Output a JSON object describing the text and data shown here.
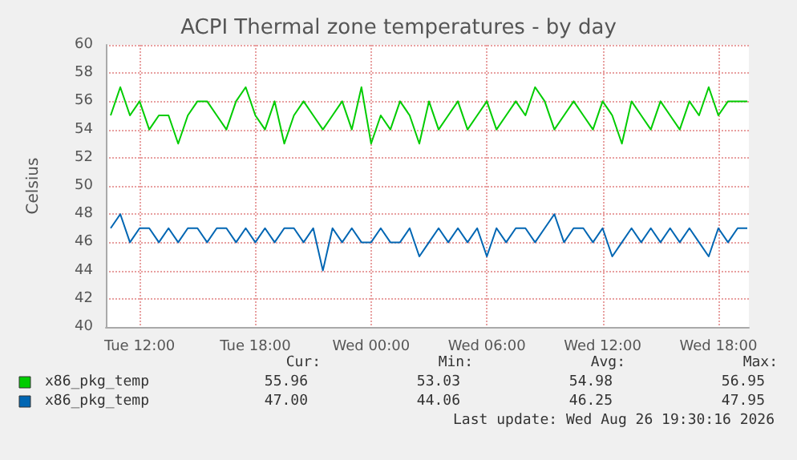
{
  "chart_data": {
    "type": "line",
    "title": "ACPI Thermal zone temperatures - by day",
    "ylabel": "Celsius",
    "x": [
      "2026-08-25T10:30",
      "2026-08-25T11:00",
      "2026-08-25T11:30",
      "2026-08-25T12:00",
      "2026-08-25T12:30",
      "2026-08-25T13:00",
      "2026-08-25T13:30",
      "2026-08-25T14:00",
      "2026-08-25T14:30",
      "2026-08-25T15:00",
      "2026-08-25T15:30",
      "2026-08-25T16:00",
      "2026-08-25T16:30",
      "2026-08-25T17:00",
      "2026-08-25T17:30",
      "2026-08-25T18:00",
      "2026-08-25T18:30",
      "2026-08-25T19:00",
      "2026-08-25T19:30",
      "2026-08-25T20:00",
      "2026-08-25T20:30",
      "2026-08-25T21:00",
      "2026-08-25T21:30",
      "2026-08-25T22:00",
      "2026-08-25T22:30",
      "2026-08-25T23:00",
      "2026-08-25T23:30",
      "2026-08-26T00:00",
      "2026-08-26T00:30",
      "2026-08-26T01:00",
      "2026-08-26T01:30",
      "2026-08-26T02:00",
      "2026-08-26T02:30",
      "2026-08-26T03:00",
      "2026-08-26T03:30",
      "2026-08-26T04:00",
      "2026-08-26T04:30",
      "2026-08-26T05:00",
      "2026-08-26T05:30",
      "2026-08-26T06:00",
      "2026-08-26T06:30",
      "2026-08-26T07:00",
      "2026-08-26T07:30",
      "2026-08-26T08:00",
      "2026-08-26T08:30",
      "2026-08-26T09:00",
      "2026-08-26T09:30",
      "2026-08-26T10:00",
      "2026-08-26T10:30",
      "2026-08-26T11:00",
      "2026-08-26T11:30",
      "2026-08-26T12:00",
      "2026-08-26T12:30",
      "2026-08-26T13:00",
      "2026-08-26T13:30",
      "2026-08-26T14:00",
      "2026-08-26T14:30",
      "2026-08-26T15:00",
      "2026-08-26T15:30",
      "2026-08-26T16:00",
      "2026-08-26T16:30",
      "2026-08-26T17:00",
      "2026-08-26T17:30",
      "2026-08-26T18:00",
      "2026-08-26T18:30",
      "2026-08-26T19:00",
      "2026-08-26T19:30"
    ],
    "series": [
      {
        "name": "x86_pkg_temp",
        "color": "#00cc00",
        "values": [
          55,
          57,
          55,
          56,
          54,
          55,
          55,
          53,
          55,
          56,
          56,
          55,
          54,
          56,
          57,
          55,
          54,
          56,
          53,
          55,
          56,
          55,
          54,
          55,
          56,
          54,
          57,
          53,
          55,
          54,
          56,
          55,
          53,
          56,
          54,
          55,
          56,
          54,
          55,
          56,
          54,
          55,
          56,
          55,
          57,
          56,
          54,
          55,
          56,
          55,
          54,
          56,
          55,
          53,
          56,
          55,
          54,
          56,
          55,
          54,
          56,
          55,
          57,
          55,
          56,
          56,
          56
        ]
      },
      {
        "name": "x86_pkg_temp",
        "color": "#0066b3",
        "values": [
          47,
          48,
          46,
          47,
          47,
          46,
          47,
          46,
          47,
          47,
          46,
          47,
          47,
          46,
          47,
          46,
          47,
          46,
          47,
          47,
          46,
          47,
          44,
          47,
          46,
          47,
          46,
          46,
          47,
          46,
          46,
          47,
          45,
          46,
          47,
          46,
          47,
          46,
          47,
          45,
          47,
          46,
          47,
          47,
          46,
          47,
          48,
          46,
          47,
          47,
          46,
          47,
          45,
          46,
          47,
          46,
          47,
          46,
          47,
          46,
          47,
          46,
          45,
          47,
          46,
          47,
          47
        ]
      }
    ],
    "xlim": [
      "2026-08-25T10:15",
      "2026-08-26T19:35"
    ],
    "xticks": [
      {
        "value": "2026-08-25T12:00",
        "label": "Tue 12:00"
      },
      {
        "value": "2026-08-25T18:00",
        "label": "Tue 18:00"
      },
      {
        "value": "2026-08-26T00:00",
        "label": "Wed 00:00"
      },
      {
        "value": "2026-08-26T06:00",
        "label": "Wed 06:00"
      },
      {
        "value": "2026-08-26T12:00",
        "label": "Wed 12:00"
      },
      {
        "value": "2026-08-26T18:00",
        "label": "Wed 18:00"
      }
    ],
    "ylim": [
      40,
      60
    ],
    "yticks": [
      40,
      42,
      44,
      46,
      48,
      50,
      52,
      54,
      56,
      58,
      60
    ],
    "grid": true,
    "legend": "bottom",
    "marker": "none",
    "line_style": "solid",
    "annotations": [
      "Cur:",
      "Min:",
      "Avg:",
      "Max:",
      "55.96",
      "53.03",
      "54.98",
      "56.95",
      "47.00",
      "44.06",
      "46.25",
      "47.95",
      "Last update: Wed Aug 26 19:30:16 2026"
    ]
  }
}
